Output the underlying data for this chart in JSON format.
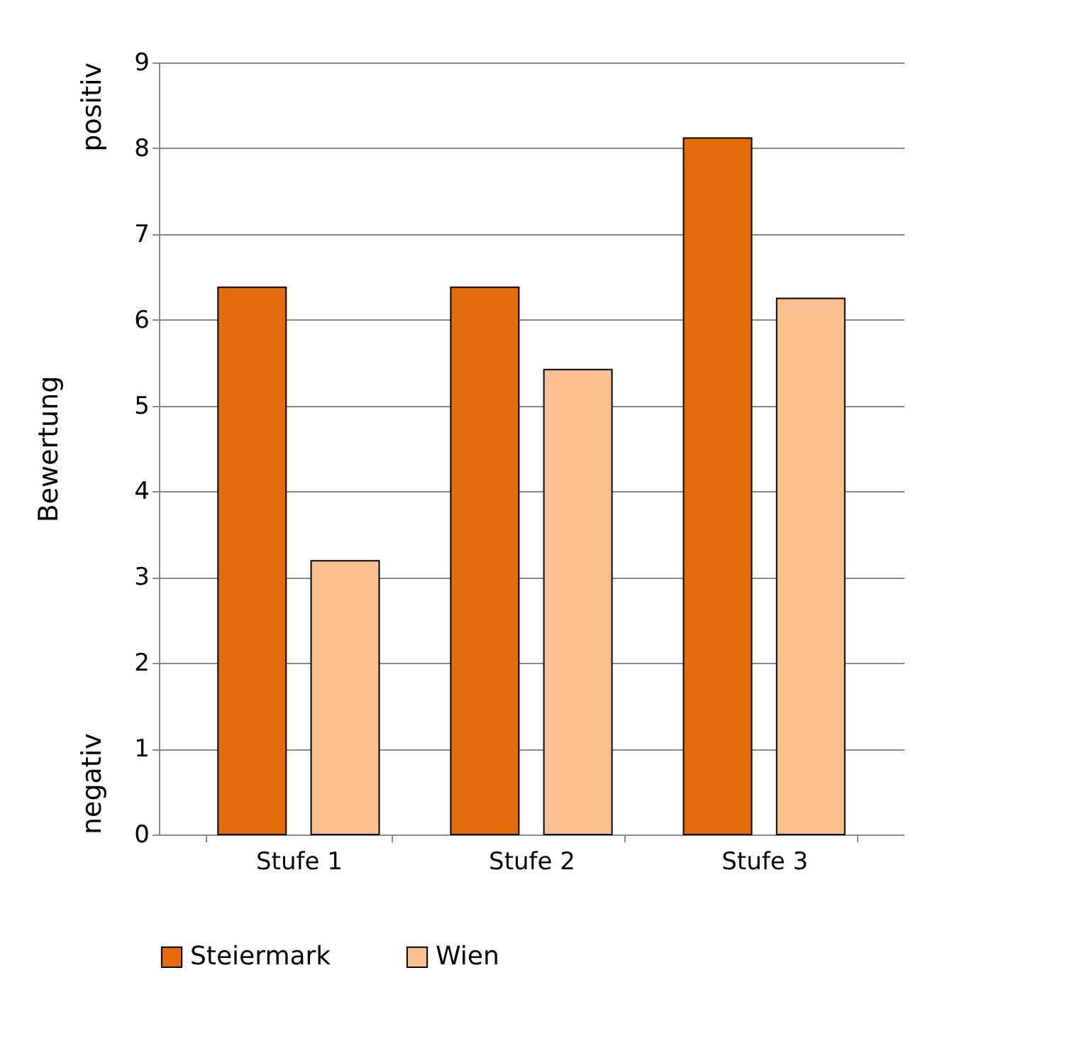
{
  "chart_data": {
    "type": "bar",
    "ylabel": "Bewertung",
    "categories": [
      "Stufe 1",
      "Stufe 2",
      "Stufe 3"
    ],
    "series": [
      {
        "name": "Steiermark",
        "color": "#e46c0a",
        "values": [
          6.38,
          6.38,
          8.12
        ]
      },
      {
        "name": "Wien",
        "color": "#fac090",
        "values": [
          3.19,
          5.42,
          6.25
        ]
      }
    ],
    "ylim": [
      0,
      9
    ],
    "yticks": [
      0,
      1,
      2,
      3,
      4,
      5,
      6,
      7,
      8,
      9
    ],
    "grid": "y",
    "legend": "bottom",
    "annotations": [
      "positiv",
      "negativ"
    ]
  }
}
